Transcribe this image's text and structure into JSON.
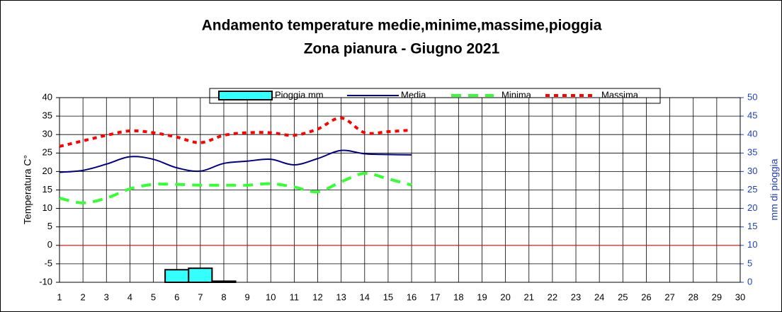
{
  "chart_data": {
    "type": "line",
    "title": "Andamento temperature medie,minime,massime,pioggia",
    "subtitle": "Zona pianura - Giugno 2021",
    "y_label": "Temperatura C°",
    "y2_label": "mm di pioggia",
    "x": [
      1,
      2,
      3,
      4,
      5,
      6,
      7,
      8,
      9,
      10,
      11,
      12,
      13,
      14,
      15,
      16,
      17,
      18,
      19,
      20,
      21,
      22,
      23,
      24,
      25,
      26,
      27,
      28,
      29,
      30
    ],
    "xlim": [
      1,
      30
    ],
    "xticks": [
      1,
      2,
      3,
      4,
      5,
      6,
      7,
      8,
      9,
      10,
      11,
      12,
      13,
      14,
      15,
      16,
      17,
      18,
      19,
      20,
      21,
      22,
      23,
      24,
      25,
      26,
      27,
      28,
      29,
      30
    ],
    "ylim": [
      -10,
      40
    ],
    "yticks": [
      -10,
      -5,
      0,
      5,
      10,
      15,
      20,
      25,
      30,
      35,
      40
    ],
    "y2lim": [
      0,
      50
    ],
    "y2ticks": [
      0,
      5,
      10,
      15,
      20,
      25,
      30,
      35,
      40,
      45,
      50
    ],
    "grid": true,
    "legend": "top",
    "series": [
      {
        "name": "Pioggia mm",
        "type": "bar",
        "axis": "y2",
        "color": "#33ffff",
        "values": [
          null,
          null,
          null,
          null,
          null,
          3.4,
          3.8,
          0.3,
          null,
          null,
          null,
          null,
          null,
          null,
          null,
          null,
          null,
          null,
          null,
          null,
          null,
          null,
          null,
          null,
          null,
          null,
          null,
          null,
          null,
          null
        ]
      },
      {
        "name": "Media",
        "type": "line",
        "style": "solid",
        "color": "#000080",
        "values": [
          19.8,
          20.3,
          22,
          24,
          23.3,
          21,
          20.1,
          22.2,
          22.8,
          23.3,
          21.8,
          23.5,
          25.7,
          24.8,
          24.6,
          24.5,
          null,
          null,
          null,
          null,
          null,
          null,
          null,
          null,
          null,
          null,
          null,
          null,
          null,
          null
        ]
      },
      {
        "name": "Minima",
        "type": "line",
        "style": "dashed",
        "color": "#33ff33",
        "values": [
          12.8,
          11.5,
          12.8,
          15.3,
          16.5,
          16.5,
          16.3,
          16.3,
          16.3,
          16.7,
          15.8,
          14.5,
          17.2,
          19.5,
          18,
          16.3,
          null,
          null,
          null,
          null,
          null,
          null,
          null,
          null,
          null,
          null,
          null,
          null,
          null,
          null
        ]
      },
      {
        "name": "Massima",
        "type": "line",
        "style": "dotted",
        "color": "#ff0000",
        "values": [
          26.8,
          28.3,
          29.8,
          31,
          30.5,
          29.3,
          27.8,
          29.8,
          30.5,
          30.5,
          29.8,
          31.5,
          34.5,
          30.5,
          30.8,
          31.2,
          null,
          null,
          null,
          null,
          null,
          null,
          null,
          null,
          null,
          null,
          null,
          null,
          null,
          null
        ]
      }
    ]
  }
}
